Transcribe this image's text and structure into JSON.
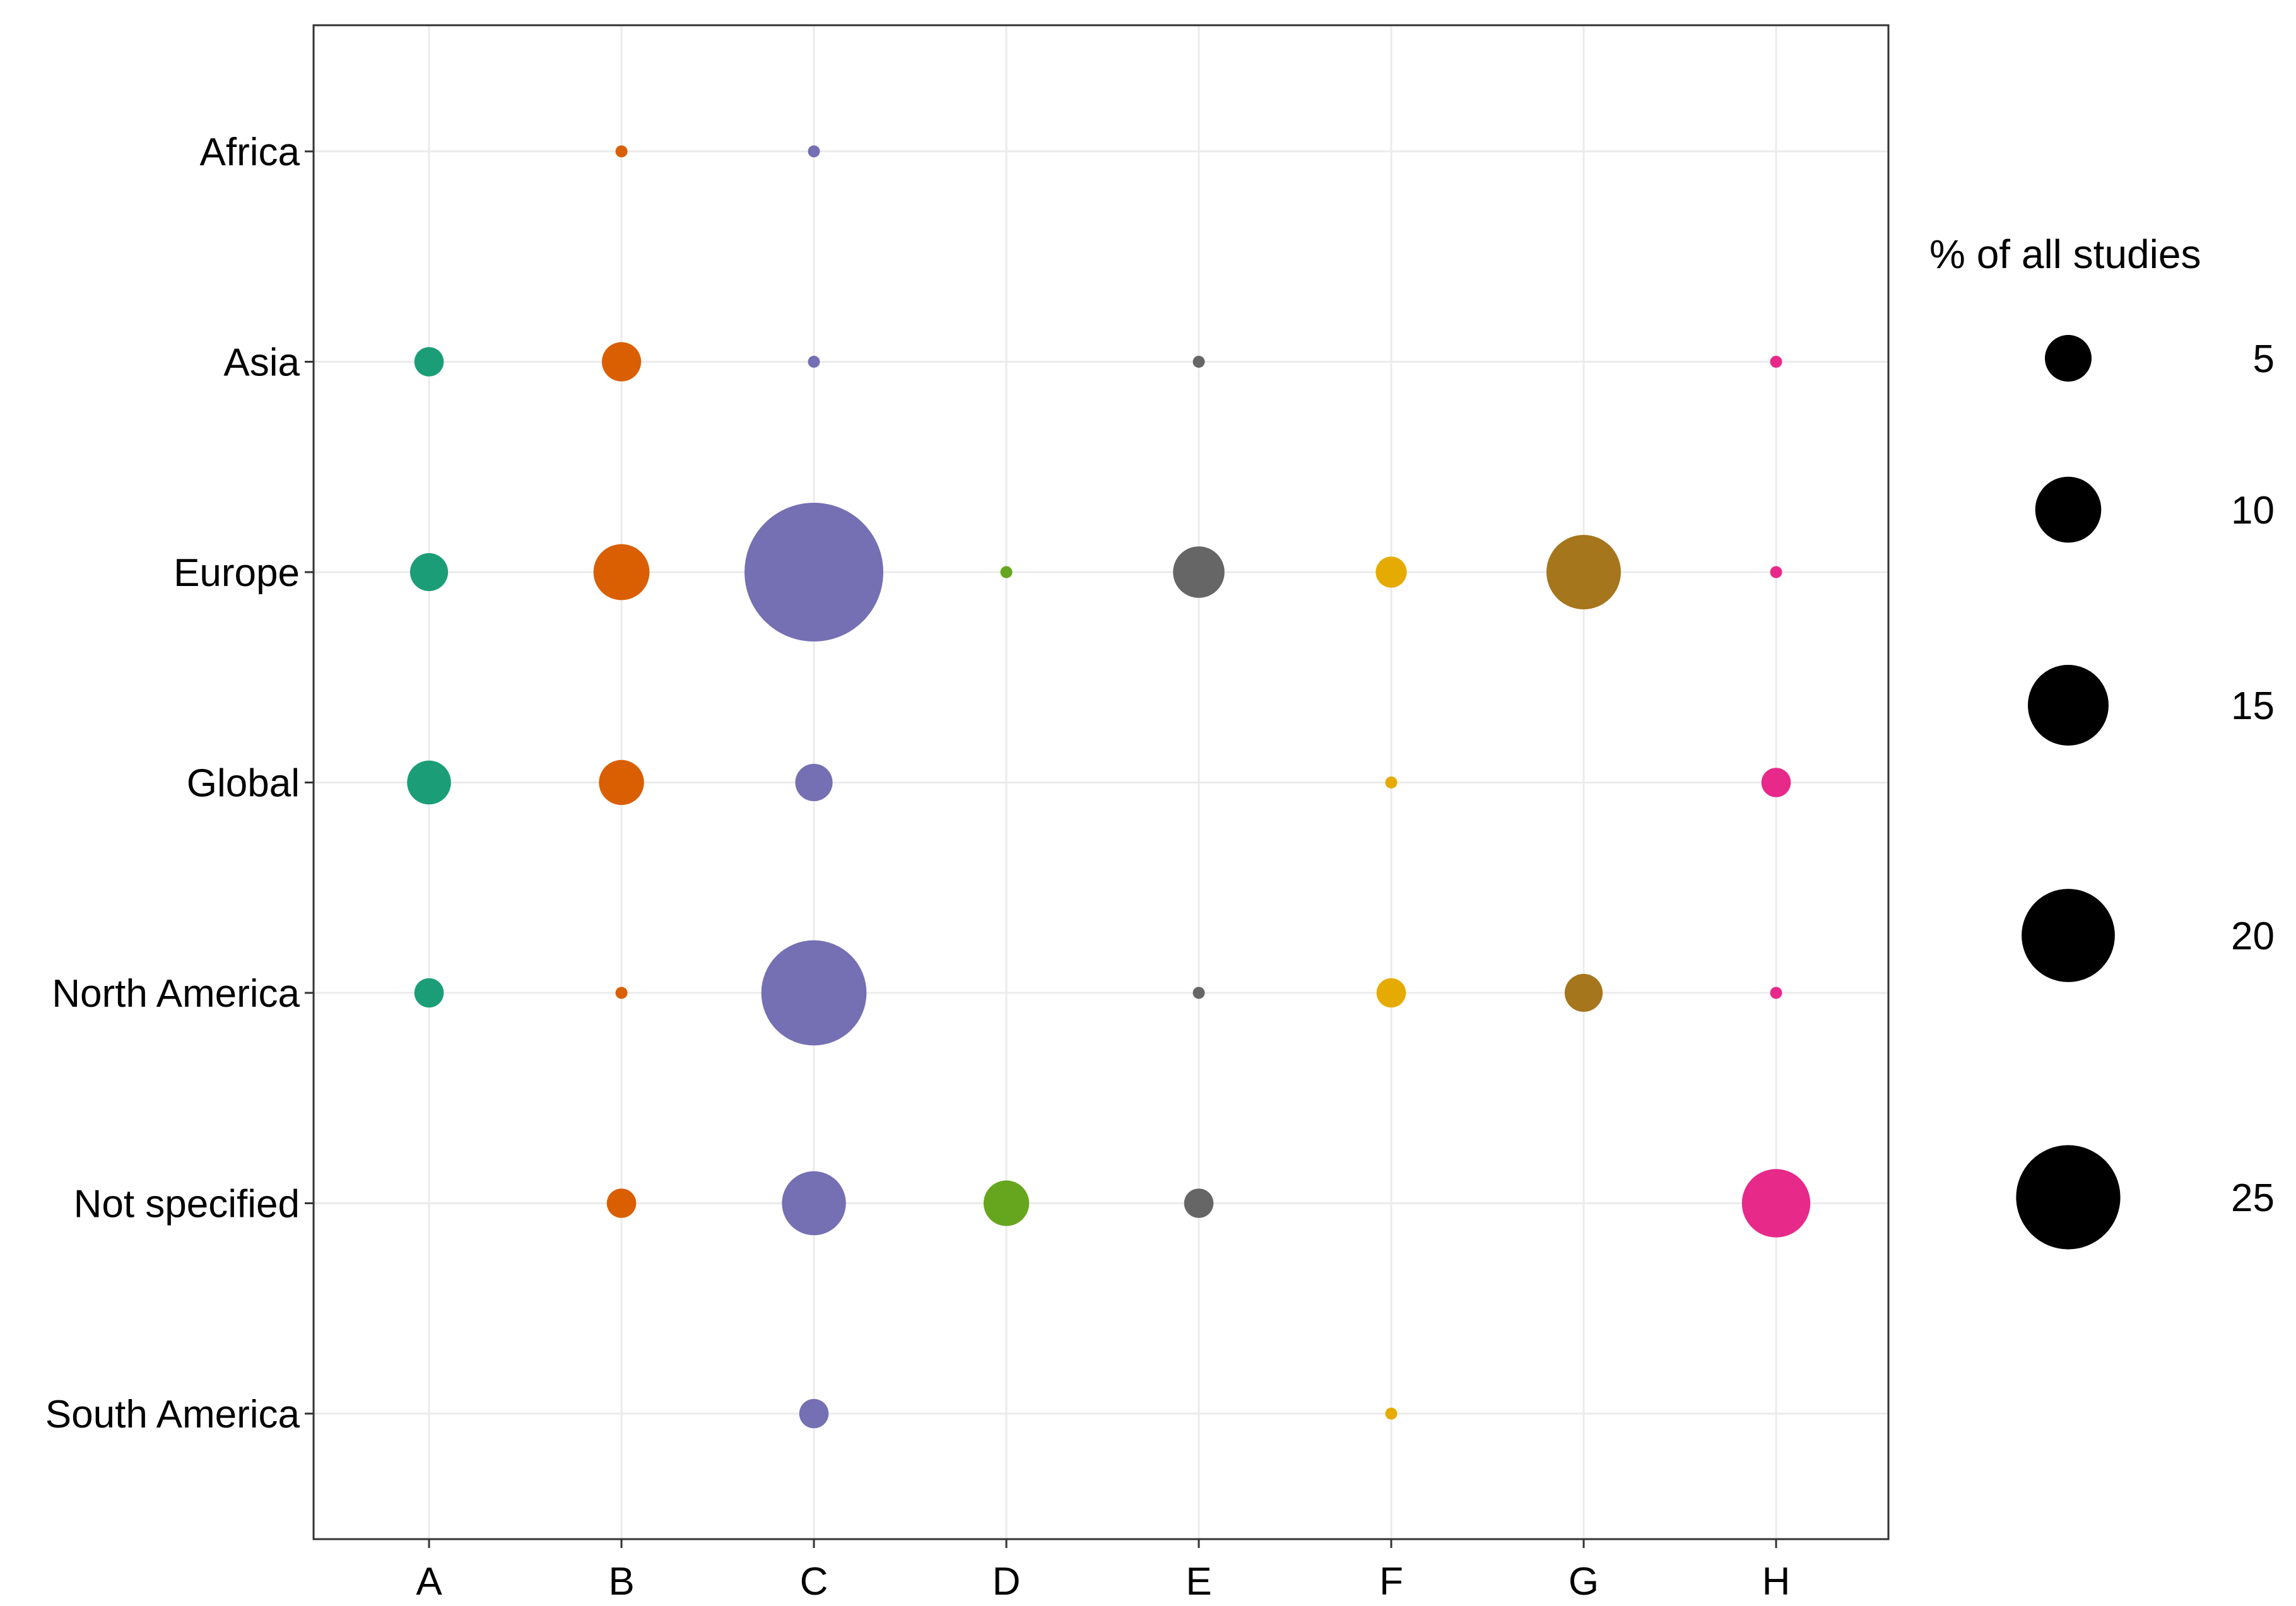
{
  "chart_data": {
    "type": "scatter",
    "title": "",
    "xlabel": "",
    "ylabel": "",
    "categories_x": [
      "A",
      "B",
      "C",
      "D",
      "E",
      "F",
      "G",
      "H"
    ],
    "categories_y": [
      "Africa",
      "Asia",
      "Europe",
      "Global",
      "North America",
      "Not specified",
      "South America"
    ],
    "grid": true,
    "legend": {
      "title": "% of all studies",
      "placement": "right",
      "sizes": [
        5,
        10,
        15,
        20,
        25
      ],
      "labels": [
        "5",
        "10",
        "15",
        "20",
        "25"
      ],
      "color": "#000000"
    },
    "colors": {
      "A": "#1b9e77",
      "B": "#d95f02",
      "C": "#7570b3",
      "D": "#66a61e",
      "E": "#666666",
      "F": "#e6ab02",
      "G": "#a6761d",
      "H": "#e7298a"
    },
    "points": [
      {
        "x": "B",
        "y": "Africa",
        "value": 0.3
      },
      {
        "x": "C",
        "y": "Africa",
        "value": 0.3
      },
      {
        "x": "A",
        "y": "Asia",
        "value": 1.8
      },
      {
        "x": "B",
        "y": "Asia",
        "value": 3.2
      },
      {
        "x": "C",
        "y": "Asia",
        "value": 0.3
      },
      {
        "x": "E",
        "y": "Asia",
        "value": 0.3
      },
      {
        "x": "H",
        "y": "Asia",
        "value": 0.3
      },
      {
        "x": "A",
        "y": "Europe",
        "value": 3.0
      },
      {
        "x": "B",
        "y": "Europe",
        "value": 6.5
      },
      {
        "x": "C",
        "y": "Europe",
        "value": 40.0
      },
      {
        "x": "D",
        "y": "Europe",
        "value": 0.3
      },
      {
        "x": "E",
        "y": "Europe",
        "value": 5.5
      },
      {
        "x": "F",
        "y": "Europe",
        "value": 2.0
      },
      {
        "x": "G",
        "y": "Europe",
        "value": 11.5
      },
      {
        "x": "H",
        "y": "Europe",
        "value": 0.3
      },
      {
        "x": "A",
        "y": "Global",
        "value": 4.0
      },
      {
        "x": "B",
        "y": "Global",
        "value": 4.2
      },
      {
        "x": "C",
        "y": "Global",
        "value": 2.9
      },
      {
        "x": "F",
        "y": "Global",
        "value": 0.3
      },
      {
        "x": "H",
        "y": "Global",
        "value": 1.8
      },
      {
        "x": "A",
        "y": "North America",
        "value": 1.8
      },
      {
        "x": "B",
        "y": "North America",
        "value": 0.3
      },
      {
        "x": "C",
        "y": "North America",
        "value": 23.0
      },
      {
        "x": "E",
        "y": "North America",
        "value": 0.3
      },
      {
        "x": "F",
        "y": "North America",
        "value": 1.8
      },
      {
        "x": "G",
        "y": "North America",
        "value": 3.0
      },
      {
        "x": "H",
        "y": "North America",
        "value": 0.3
      },
      {
        "x": "B",
        "y": "Not specified",
        "value": 1.8
      },
      {
        "x": "C",
        "y": "Not specified",
        "value": 8.5
      },
      {
        "x": "D",
        "y": "Not specified",
        "value": 4.3
      },
      {
        "x": "E",
        "y": "Not specified",
        "value": 1.8
      },
      {
        "x": "H",
        "y": "Not specified",
        "value": 9.7
      },
      {
        "x": "C",
        "y": "South America",
        "value": 1.8
      },
      {
        "x": "F",
        "y": "South America",
        "value": 0.3
      }
    ]
  }
}
